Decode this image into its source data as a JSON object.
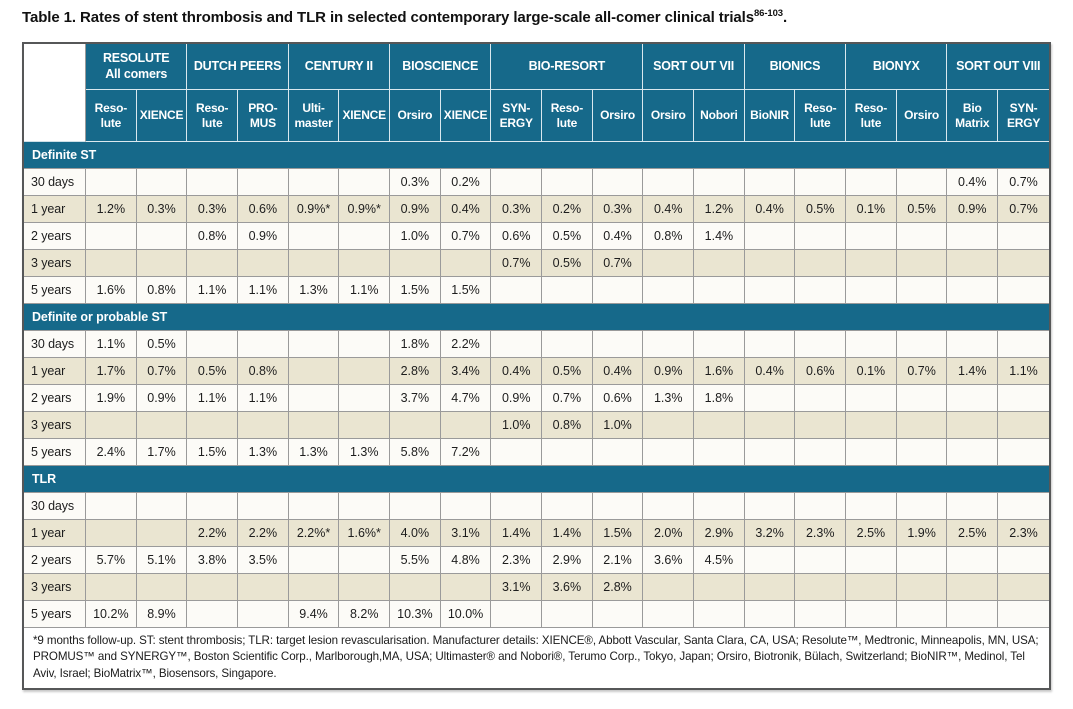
{
  "title": {
    "label": "Table 1.",
    "text": " Rates of stent thrombosis and TLR in selected contemporary large-scale all-comer clinical trials",
    "reference_superscript": "86-103",
    "period": "."
  },
  "colors": {
    "teal_header": "#16698a",
    "beige_row": "#eae5d1",
    "white_row": "#fcfbf7",
    "grid_line": "#9a9a9a",
    "outer_border": "#565758"
  },
  "table": {
    "trials": [
      {
        "name": "RESOLUTE All comers",
        "lines": [
          "RESOLUTE",
          "All comers"
        ],
        "span": 2
      },
      {
        "name": "DUTCH PEERS",
        "lines": [
          "DUTCH PEERS"
        ],
        "span": 2
      },
      {
        "name": "CENTURY II",
        "lines": [
          "CENTURY II"
        ],
        "span": 2
      },
      {
        "name": "BIOSCIENCE",
        "lines": [
          "BIOSCIENCE"
        ],
        "span": 2
      },
      {
        "name": "BIO-RESORT",
        "lines": [
          "BIO-RESORT"
        ],
        "span": 3
      },
      {
        "name": "SORT OUT VII",
        "lines": [
          "SORT OUT VII"
        ],
        "span": 2
      },
      {
        "name": "BIONICS",
        "lines": [
          "BIONICS"
        ],
        "span": 2
      },
      {
        "name": "BIONYX",
        "lines": [
          "BIONYX"
        ],
        "span": 2
      },
      {
        "name": "SORT OUT VIII",
        "lines": [
          "SORT OUT VIII"
        ],
        "span": 2
      }
    ],
    "stents": [
      {
        "name": "Resolute",
        "lines": [
          "Reso-",
          "lute"
        ]
      },
      {
        "name": "XIENCE",
        "lines": [
          "XIENCE"
        ]
      },
      {
        "name": "Resolute",
        "lines": [
          "Reso-",
          "lute"
        ]
      },
      {
        "name": "PROMUS",
        "lines": [
          "PRO-",
          "MUS"
        ]
      },
      {
        "name": "Ultimaster",
        "lines": [
          "Ulti-",
          "master"
        ]
      },
      {
        "name": "XIENCE",
        "lines": [
          "XIENCE"
        ]
      },
      {
        "name": "Orsiro",
        "lines": [
          "Orsiro"
        ]
      },
      {
        "name": "XIENCE",
        "lines": [
          "XIENCE"
        ]
      },
      {
        "name": "SYNERGY",
        "lines": [
          "SYN-",
          "ERGY"
        ]
      },
      {
        "name": "Resolute",
        "lines": [
          "Reso-",
          "lute"
        ]
      },
      {
        "name": "Orsiro",
        "lines": [
          "Orsiro"
        ]
      },
      {
        "name": "Orsiro",
        "lines": [
          "Orsiro"
        ]
      },
      {
        "name": "Nobori",
        "lines": [
          "Nobori"
        ]
      },
      {
        "name": "BioNIR",
        "lines": [
          "BioNIR"
        ]
      },
      {
        "name": "Resolute",
        "lines": [
          "Reso-",
          "lute"
        ]
      },
      {
        "name": "Resolute",
        "lines": [
          "Reso-",
          "lute"
        ]
      },
      {
        "name": "Orsiro",
        "lines": [
          "Orsiro"
        ]
      },
      {
        "name": "BioMatrix",
        "lines": [
          "Bio",
          "Matrix"
        ]
      },
      {
        "name": "SYNERGY",
        "lines": [
          "SYN-",
          "ERGY"
        ]
      }
    ],
    "sections": [
      {
        "label": "Definite ST",
        "rows": [
          {
            "label": "30 days",
            "values": [
              "",
              "",
              "",
              "",
              "",
              "",
              "0.3%",
              "0.2%",
              "",
              "",
              "",
              "",
              "",
              "",
              "",
              "",
              "",
              "0.4%",
              "0.7%"
            ]
          },
          {
            "label": "1 year",
            "values": [
              "1.2%",
              "0.3%",
              "0.3%",
              "0.6%",
              "0.9%*",
              "0.9%*",
              "0.9%",
              "0.4%",
              "0.3%",
              "0.2%",
              "0.3%",
              "0.4%",
              "1.2%",
              "0.4%",
              "0.5%",
              "0.1%",
              "0.5%",
              "0.9%",
              "0.7%"
            ]
          },
          {
            "label": "2 years",
            "values": [
              "",
              "",
              "0.8%",
              "0.9%",
              "",
              "",
              "1.0%",
              "0.7%",
              "0.6%",
              "0.5%",
              "0.4%",
              "0.8%",
              "1.4%",
              "",
              "",
              "",
              "",
              "",
              ""
            ]
          },
          {
            "label": "3 years",
            "values": [
              "",
              "",
              "",
              "",
              "",
              "",
              "",
              "",
              "0.7%",
              "0.5%",
              "0.7%",
              "",
              "",
              "",
              "",
              "",
              "",
              "",
              ""
            ]
          },
          {
            "label": "5 years",
            "values": [
              "1.6%",
              "0.8%",
              "1.1%",
              "1.1%",
              "1.3%",
              "1.1%",
              "1.5%",
              "1.5%",
              "",
              "",
              "",
              "",
              "",
              "",
              "",
              "",
              "",
              "",
              ""
            ]
          }
        ]
      },
      {
        "label": "Definite or probable ST",
        "rows": [
          {
            "label": "30 days",
            "values": [
              "1.1%",
              "0.5%",
              "",
              "",
              "",
              "",
              "1.8%",
              "2.2%",
              "",
              "",
              "",
              "",
              "",
              "",
              "",
              "",
              "",
              "",
              ""
            ]
          },
          {
            "label": "1 year",
            "values": [
              "1.7%",
              "0.7%",
              "0.5%",
              "0.8%",
              "",
              "",
              "2.8%",
              "3.4%",
              "0.4%",
              "0.5%",
              "0.4%",
              "0.9%",
              "1.6%",
              "0.4%",
              "0.6%",
              "0.1%",
              "0.7%",
              "1.4%",
              "1.1%"
            ]
          },
          {
            "label": "2 years",
            "values": [
              "1.9%",
              "0.9%",
              "1.1%",
              "1.1%",
              "",
              "",
              "3.7%",
              "4.7%",
              "0.9%",
              "0.7%",
              "0.6%",
              "1.3%",
              "1.8%",
              "",
              "",
              "",
              "",
              "",
              ""
            ]
          },
          {
            "label": "3 years",
            "values": [
              "",
              "",
              "",
              "",
              "",
              "",
              "",
              "",
              "1.0%",
              "0.8%",
              "1.0%",
              "",
              "",
              "",
              "",
              "",
              "",
              "",
              ""
            ]
          },
          {
            "label": "5 years",
            "values": [
              "2.4%",
              "1.7%",
              "1.5%",
              "1.3%",
              "1.3%",
              "1.3%",
              "5.8%",
              "7.2%",
              "",
              "",
              "",
              "",
              "",
              "",
              "",
              "",
              "",
              "",
              ""
            ]
          }
        ]
      },
      {
        "label": "TLR",
        "rows": [
          {
            "label": "30 days",
            "values": [
              "",
              "",
              "",
              "",
              "",
              "",
              "",
              "",
              "",
              "",
              "",
              "",
              "",
              "",
              "",
              "",
              "",
              "",
              ""
            ]
          },
          {
            "label": "1 year",
            "values": [
              "",
              "",
              "2.2%",
              "2.2%",
              "2.2%*",
              "1.6%*",
              "4.0%",
              "3.1%",
              "1.4%",
              "1.4%",
              "1.5%",
              "2.0%",
              "2.9%",
              "3.2%",
              "2.3%",
              "2.5%",
              "1.9%",
              "2.5%",
              "2.3%"
            ]
          },
          {
            "label": "2 years",
            "values": [
              "5.7%",
              "5.1%",
              "3.8%",
              "3.5%",
              "",
              "",
              "5.5%",
              "4.8%",
              "2.3%",
              "2.9%",
              "2.1%",
              "3.6%",
              "4.5%",
              "",
              "",
              "",
              "",
              "",
              ""
            ]
          },
          {
            "label": "3 years",
            "values": [
              "",
              "",
              "",
              "",
              "",
              "",
              "",
              "",
              "3.1%",
              "3.6%",
              "2.8%",
              "",
              "",
              "",
              "",
              "",
              "",
              "",
              ""
            ]
          },
          {
            "label": "5 years",
            "values": [
              "10.2%",
              "8.9%",
              "",
              "",
              "9.4%",
              "8.2%",
              "10.3%",
              "10.0%",
              "",
              "",
              "",
              "",
              "",
              "",
              "",
              "",
              "",
              "",
              ""
            ]
          }
        ]
      }
    ]
  },
  "footnote": "*9 months follow-up. ST: stent thrombosis; TLR: target lesion revascularisation.  Manufacturer details: XIENCE®, Abbott Vascular, Santa Clara, CA, USA; Resolute™, Medtronic, Minneapolis, MN, USA; PROMUS™ and SYNERGY™, Boston Scientific Corp., Marlborough,MA, USA; Ultimaster® and Nobori®, Terumo Corp., Tokyo, Japan; Orsiro, Biotronik, Bülach, Switzerland; BioNIR™, Medinol, Tel Aviv, Israel; BioMatrix™, Biosensors, Singapore."
}
